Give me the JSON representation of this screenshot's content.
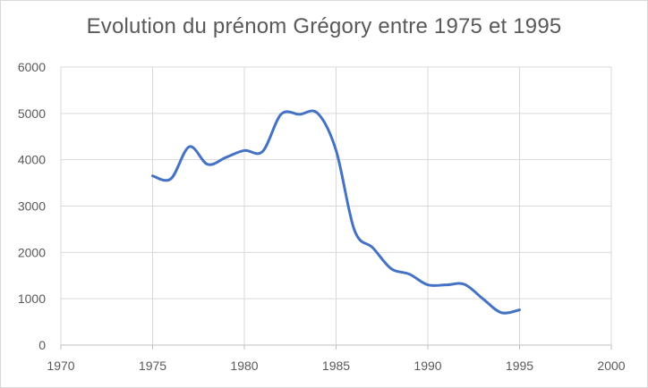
{
  "chart_data": {
    "type": "line",
    "title": "Evolution du prénom Grégory entre 1975 et 1995",
    "xlabel": "",
    "ylabel": "",
    "xlim": [
      1970,
      2000
    ],
    "ylim": [
      0,
      6000
    ],
    "x_ticks": [
      1970,
      1975,
      1980,
      1985,
      1990,
      1995,
      2000
    ],
    "y_ticks": [
      0,
      1000,
      2000,
      3000,
      4000,
      5000,
      6000
    ],
    "grid": true,
    "legend": "none",
    "smooth": true,
    "series": [
      {
        "color": "#4472c4",
        "points": [
          {
            "x": 1975,
            "y": 3650
          },
          {
            "x": 1976,
            "y": 3590
          },
          {
            "x": 1977,
            "y": 4280
          },
          {
            "x": 1978,
            "y": 3900
          },
          {
            "x": 1979,
            "y": 4050
          },
          {
            "x": 1980,
            "y": 4200
          },
          {
            "x": 1981,
            "y": 4180
          },
          {
            "x": 1982,
            "y": 4980
          },
          {
            "x": 1983,
            "y": 4980
          },
          {
            "x": 1984,
            "y": 5000
          },
          {
            "x": 1985,
            "y": 4200
          },
          {
            "x": 1986,
            "y": 2480
          },
          {
            "x": 1987,
            "y": 2100
          },
          {
            "x": 1988,
            "y": 1650
          },
          {
            "x": 1989,
            "y": 1530
          },
          {
            "x": 1990,
            "y": 1300
          },
          {
            "x": 1991,
            "y": 1300
          },
          {
            "x": 1992,
            "y": 1310
          },
          {
            "x": 1993,
            "y": 1000
          },
          {
            "x": 1994,
            "y": 700
          },
          {
            "x": 1995,
            "y": 760
          }
        ]
      }
    ]
  }
}
